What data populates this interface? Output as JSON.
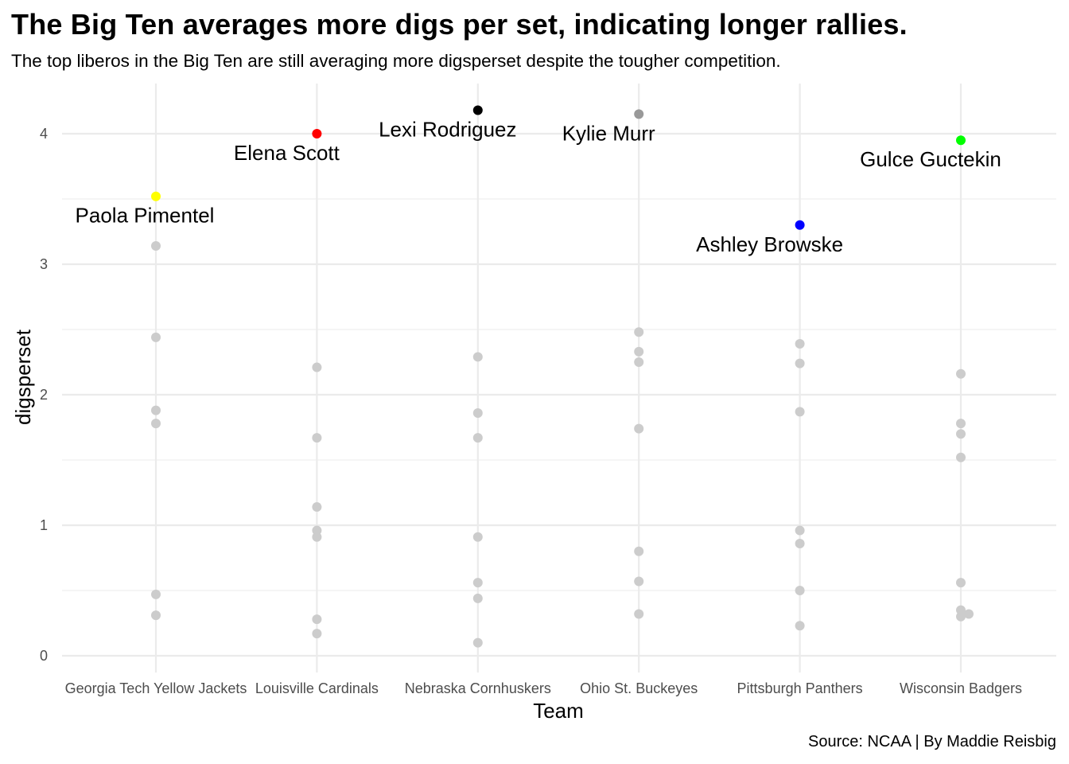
{
  "title": "The Big Ten averages more digs per set, indicating longer rallies.",
  "subtitle": "The top liberos in the Big Ten are still averaging more digsperset despite the tougher competition.",
  "caption": "Source: NCAA | By Maddie Reisbig",
  "chart_data": {
    "type": "scatter",
    "xlabel": "Team",
    "ylabel": "digsperset",
    "ylim": [
      0,
      4.2
    ],
    "y_ticks": [
      0,
      1,
      2,
      3,
      4
    ],
    "grid": true,
    "categories": [
      "Georgia Tech Yellow Jackets",
      "Louisville Cardinals",
      "Nebraska Cornhuskers",
      "Ohio St. Buckeyes",
      "Pittsburgh Panthers",
      "Wisconsin Badgers"
    ],
    "background_color": "#cccccc",
    "background_points": [
      {
        "team": "Georgia Tech Yellow Jackets",
        "values": [
          3.14,
          2.44,
          1.88,
          1.78,
          0.47,
          0.31
        ]
      },
      {
        "team": "Louisville Cardinals",
        "values": [
          2.21,
          1.67,
          1.14,
          0.96,
          0.91,
          0.28,
          0.17
        ]
      },
      {
        "team": "Nebraska Cornhuskers",
        "values": [
          2.29,
          1.86,
          1.67,
          0.91,
          0.56,
          0.44,
          0.1
        ]
      },
      {
        "team": "Ohio St. Buckeyes",
        "values": [
          2.48,
          2.33,
          2.25,
          1.74,
          0.8,
          0.57,
          0.32
        ]
      },
      {
        "team": "Pittsburgh Panthers",
        "values": [
          2.39,
          2.24,
          1.87,
          0.96,
          0.86,
          0.5,
          0.23
        ]
      },
      {
        "team": "Wisconsin Badgers",
        "values": [
          2.16,
          1.78,
          1.7,
          1.52,
          0.56,
          0.35,
          0.32,
          0.3
        ]
      }
    ],
    "highlighted_points": [
      {
        "team": "Georgia Tech Yellow Jackets",
        "player": "Paola Pimentel",
        "value": 3.52,
        "color": "#ffff00"
      },
      {
        "team": "Louisville Cardinals",
        "player": "Elena Scott",
        "value": 4.0,
        "color": "#ff0000"
      },
      {
        "team": "Nebraska Cornhuskers",
        "player": "Lexi Rodriguez",
        "value": 4.18,
        "color": "#000000"
      },
      {
        "team": "Ohio St. Buckeyes",
        "player": "Kylie Murr",
        "value": 4.15,
        "color": "#999999"
      },
      {
        "team": "Pittsburgh Panthers",
        "player": "Ashley Browske",
        "value": 3.3,
        "color": "#0000ff"
      },
      {
        "team": "Wisconsin Badgers",
        "player": "Gulce Guctekin",
        "value": 3.95,
        "color": "#00ff00"
      }
    ]
  }
}
